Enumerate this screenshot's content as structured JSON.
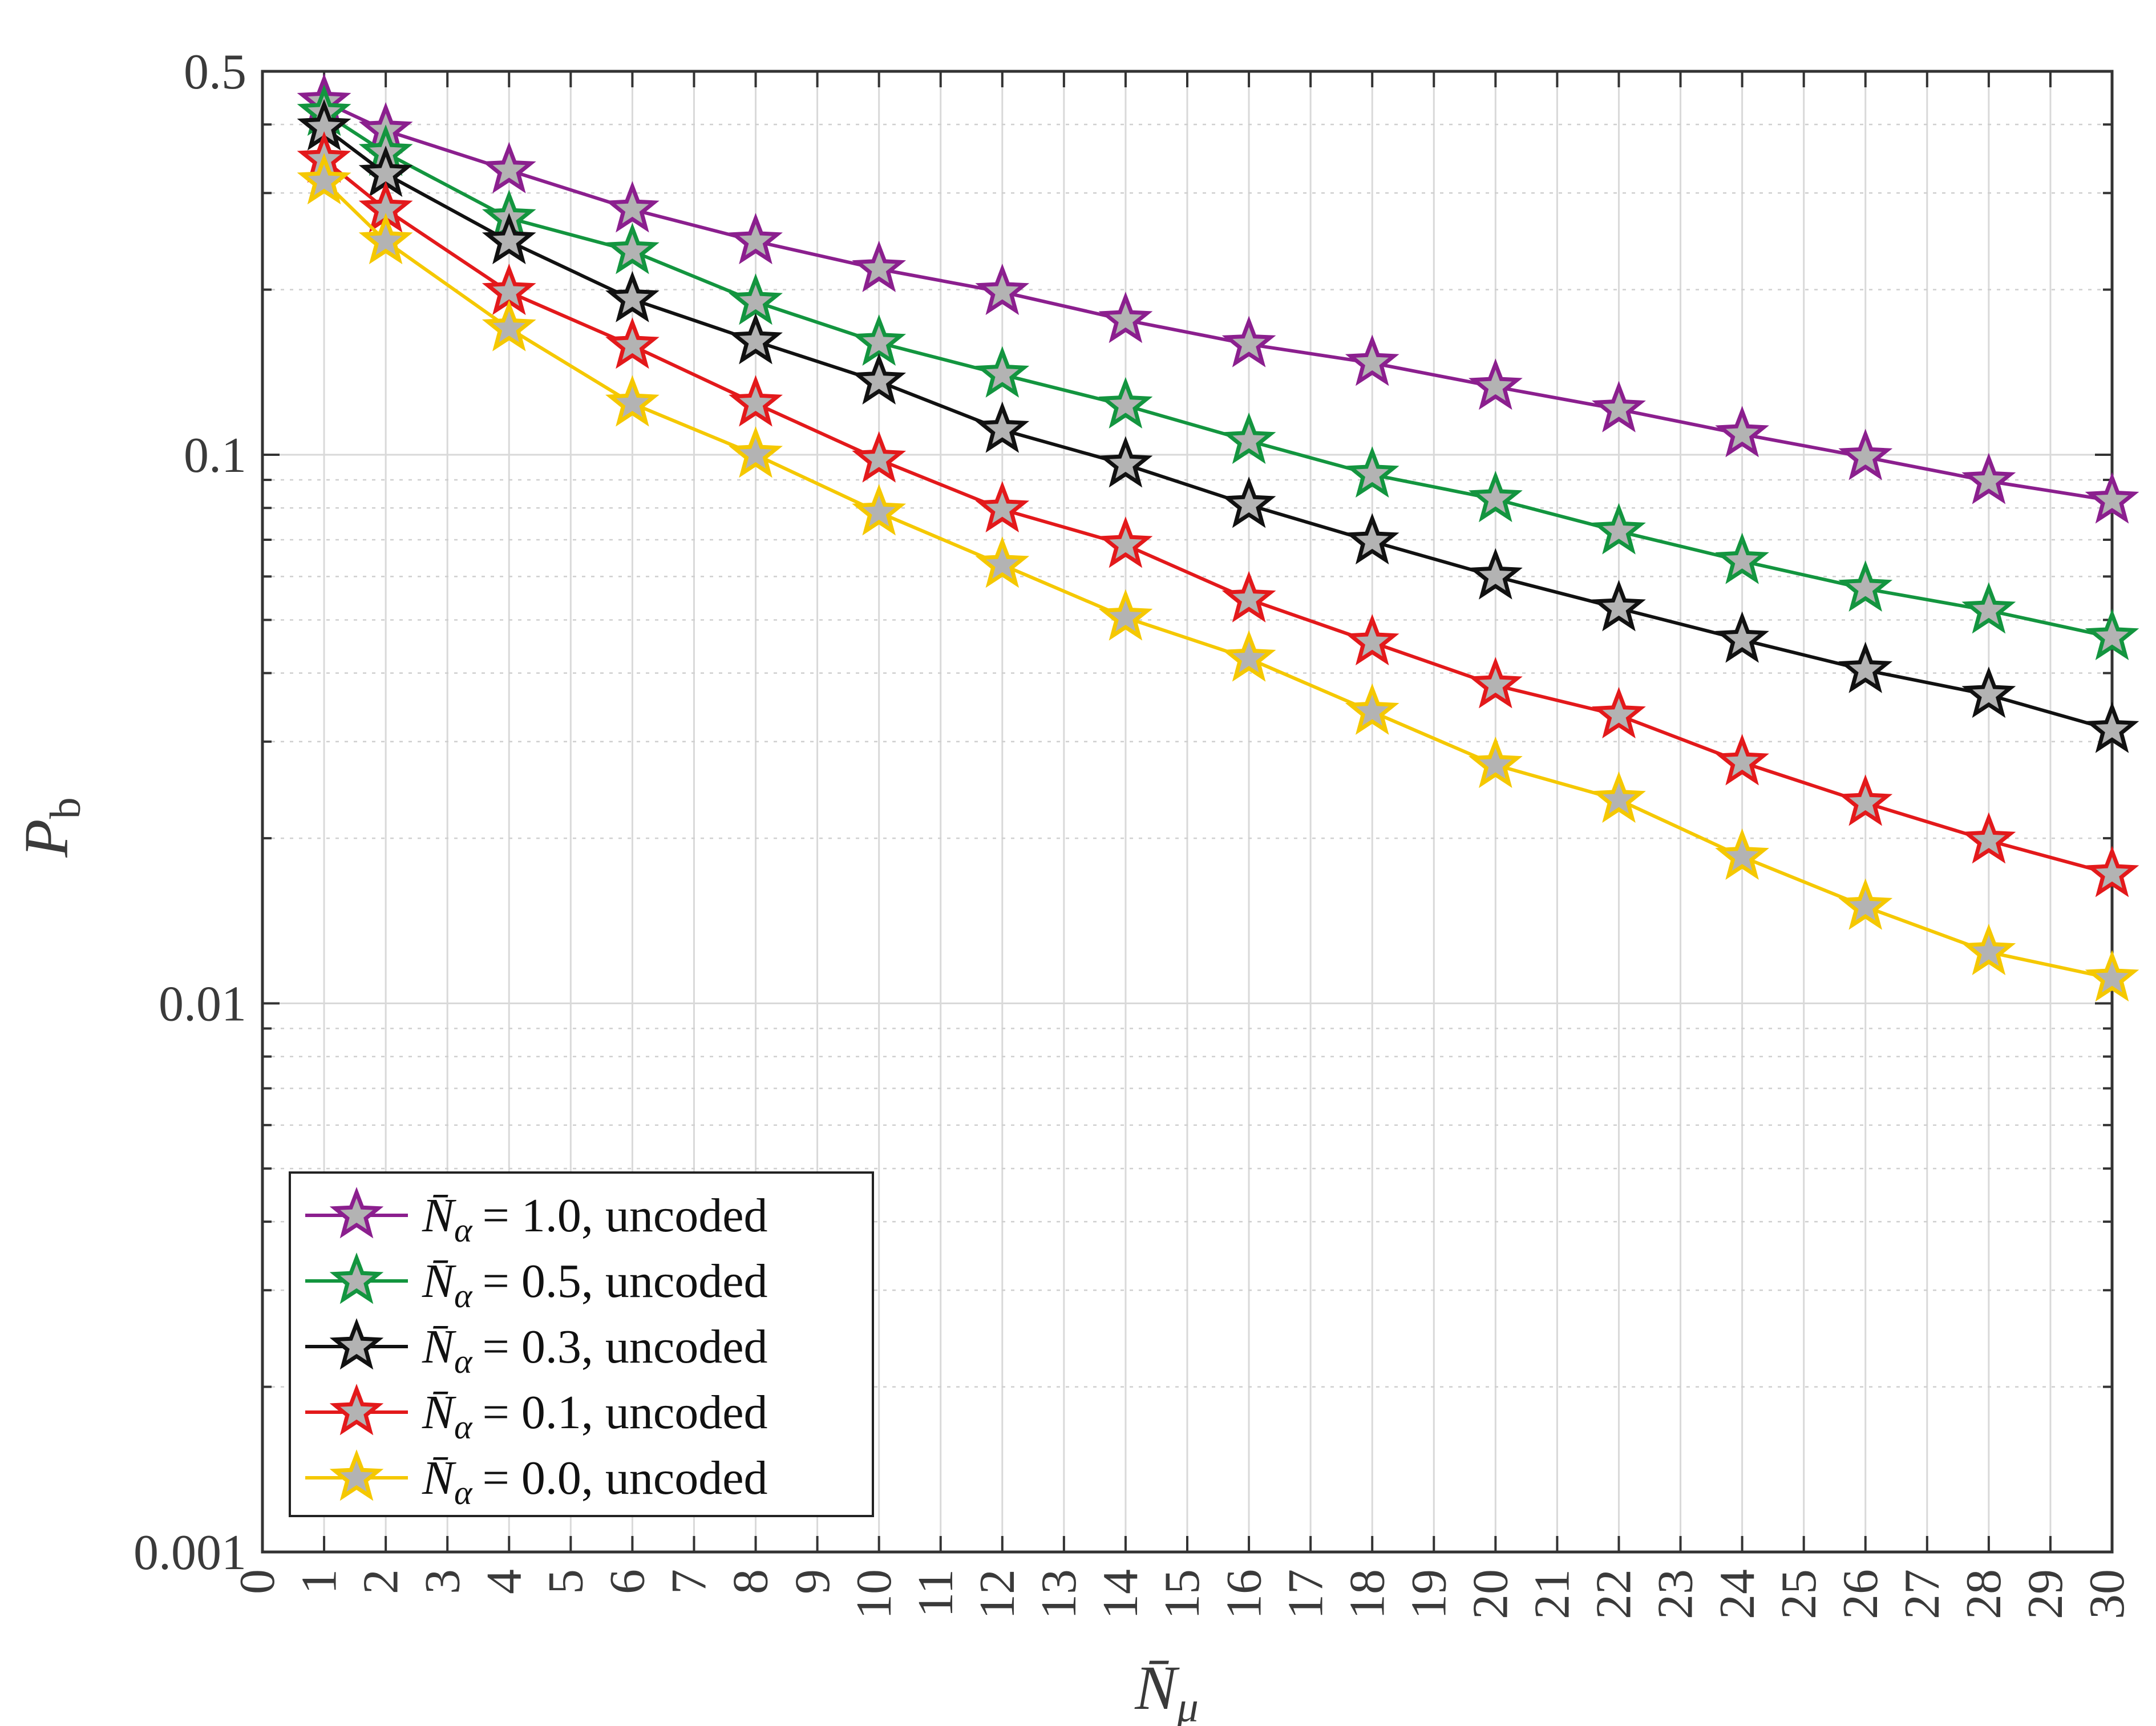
{
  "chart_data": {
    "type": "line",
    "xlabel": "N̄μ",
    "ylabel": "Pb",
    "xlim": [
      0,
      30
    ],
    "ylim": [
      0.001,
      0.5
    ],
    "yscale": "log",
    "grid": true,
    "minor_grid": true,
    "legend_position": "bottom-left",
    "x_ticks": [
      0,
      1,
      2,
      3,
      4,
      5,
      6,
      7,
      8,
      9,
      10,
      11,
      12,
      13,
      14,
      15,
      16,
      17,
      18,
      19,
      20,
      21,
      22,
      23,
      24,
      25,
      26,
      27,
      28,
      29,
      30
    ],
    "y_ticks": [
      {
        "value": 0.001,
        "label": "0.001"
      },
      {
        "value": 0.01,
        "label": "0.01"
      },
      {
        "value": 0.1,
        "label": "0.1"
      },
      {
        "value": 0.5,
        "label": "0.5"
      }
    ],
    "x": [
      1,
      2,
      4,
      6,
      8,
      10,
      12,
      14,
      16,
      18,
      20,
      22,
      24,
      26,
      28,
      30
    ],
    "series": [
      {
        "name": "N̄α = 1.0, uncoded",
        "color": "#8B1F8E",
        "values": [
          0.44,
          0.39,
          0.33,
          0.28,
          0.245,
          0.218,
          0.198,
          0.176,
          0.159,
          0.147,
          0.133,
          0.121,
          0.109,
          0.099,
          0.0895,
          0.0825
        ]
      },
      {
        "name": "N̄α = 0.5, uncoded",
        "color": "#13953F",
        "values": [
          0.42,
          0.355,
          0.27,
          0.235,
          0.19,
          0.16,
          0.14,
          0.123,
          0.106,
          0.092,
          0.083,
          0.0725,
          0.064,
          0.057,
          0.052,
          0.0465
        ]
      },
      {
        "name": "N̄α = 0.3, uncoded",
        "color": "#111111",
        "values": [
          0.395,
          0.325,
          0.245,
          0.192,
          0.161,
          0.136,
          0.111,
          0.096,
          0.081,
          0.0695,
          0.06,
          0.0525,
          0.046,
          0.0405,
          0.0365,
          0.0315
        ]
      },
      {
        "name": "N̄α = 0.1, uncoded",
        "color": "#E3191B",
        "values": [
          0.345,
          0.28,
          0.198,
          0.158,
          0.124,
          0.098,
          0.0795,
          0.0685,
          0.0545,
          0.0455,
          0.038,
          0.0335,
          0.0275,
          0.0232,
          0.0198,
          0.0172
        ]
      },
      {
        "name": "N̄α = 0.0, uncoded",
        "color": "#F5C800",
        "values": [
          0.315,
          0.245,
          0.17,
          0.124,
          0.1,
          0.0785,
          0.063,
          0.0505,
          0.0425,
          0.034,
          0.0272,
          0.0235,
          0.0185,
          0.015,
          0.0124,
          0.0111
        ]
      }
    ]
  },
  "legend": {
    "entries": [
      {
        "symbol": "N̄",
        "sub": "α",
        "rest": "= 1.0, uncoded"
      },
      {
        "symbol": "N̄",
        "sub": "α",
        "rest": "= 0.5, uncoded"
      },
      {
        "symbol": "N̄",
        "sub": "α",
        "rest": "= 0.3, uncoded"
      },
      {
        "symbol": "N̄",
        "sub": "α",
        "rest": "= 0.1, uncoded"
      },
      {
        "symbol": "N̄",
        "sub": "α",
        "rest": "= 0.0, uncoded"
      }
    ]
  },
  "axis_labels": {
    "x": {
      "main": "N̄",
      "sub": "μ"
    },
    "y": {
      "main": "P",
      "sub": "b"
    }
  },
  "colors": {
    "grid": "#d9d9d9",
    "axis": "#333333",
    "marker_fill": "#b3b3b3"
  }
}
